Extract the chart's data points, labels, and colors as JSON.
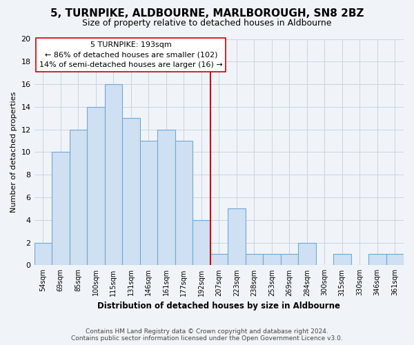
{
  "title": "5, TURNPIKE, ALDBOURNE, MARLBOROUGH, SN8 2BZ",
  "subtitle": "Size of property relative to detached houses in Aldbourne",
  "xlabel": "Distribution of detached houses by size in Aldbourne",
  "ylabel": "Number of detached properties",
  "bar_labels": [
    "54sqm",
    "69sqm",
    "85sqm",
    "100sqm",
    "115sqm",
    "131sqm",
    "146sqm",
    "161sqm",
    "177sqm",
    "192sqm",
    "207sqm",
    "223sqm",
    "238sqm",
    "253sqm",
    "269sqm",
    "284sqm",
    "300sqm",
    "315sqm",
    "330sqm",
    "346sqm",
    "361sqm"
  ],
  "bar_values": [
    2,
    10,
    12,
    14,
    16,
    13,
    11,
    12,
    11,
    4,
    1,
    5,
    1,
    1,
    1,
    2,
    0,
    1,
    0,
    1,
    1
  ],
  "bar_color": "#cfe0f2",
  "bar_edge_color": "#6fa8d4",
  "vline_x_idx": 9,
  "vline_color": "#cc0000",
  "annotation_title": "5 TURNPIKE: 193sqm",
  "annotation_line1": "← 86% of detached houses are smaller (102)",
  "annotation_line2": "14% of semi-detached houses are larger (16) →",
  "annotation_box_color": "#ffffff",
  "annotation_box_edge": "#cc0000",
  "ylim": [
    0,
    20
  ],
  "yticks": [
    0,
    2,
    4,
    6,
    8,
    10,
    12,
    14,
    16,
    18,
    20
  ],
  "grid_color": "#c8d4e0",
  "background_color": "#f0f4f8",
  "footer_line1": "Contains HM Land Registry data © Crown copyright and database right 2024.",
  "footer_line2": "Contains public sector information licensed under the Open Government Licence v3.0.",
  "title_fontsize": 11,
  "subtitle_fontsize": 9,
  "footer_fontsize": 6.5
}
